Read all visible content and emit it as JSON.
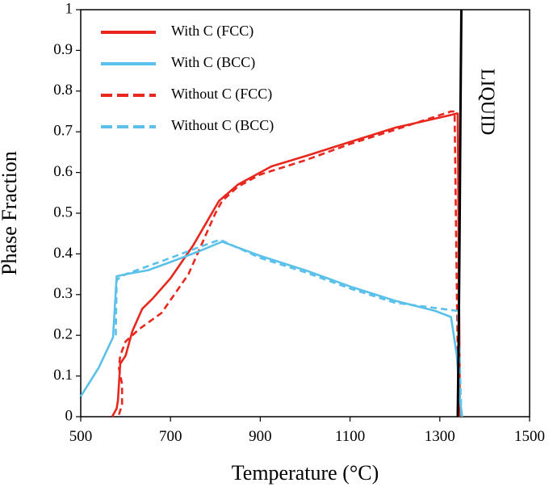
{
  "chart_data": {
    "type": "line",
    "xlabel": "Temperature (°C)",
    "ylabel": "Phase Fraction",
    "xlim": [
      500,
      1500
    ],
    "ylim": [
      0,
      1
    ],
    "xticks": [
      "500",
      "700",
      "900",
      "1100",
      "1300",
      "1500"
    ],
    "xtick_values": [
      500,
      700,
      900,
      1100,
      1300,
      1500
    ],
    "yticks": [
      "0",
      "0.1",
      "0.2",
      "0.3",
      "0.4",
      "0.5",
      "0.6",
      "0.7",
      "0.8",
      "0.9",
      "1"
    ],
    "ytick_values": [
      0,
      0.1,
      0.2,
      0.3,
      0.4,
      0.5,
      0.6,
      0.7,
      0.8,
      0.9,
      1
    ],
    "grid": false,
    "legend_position": "top-left",
    "annotation": "LIQUID",
    "series": [
      {
        "name": "With C (FCC)",
        "color": "#e8281e",
        "dash": "solid",
        "x": [
          570,
          580,
          583,
          588,
          600,
          615,
          637,
          660,
          700,
          750,
          808,
          850,
          925,
          1000,
          1100,
          1200,
          1320,
          1338,
          1340,
          1342,
          1345
        ],
        "y": [
          0,
          0.02,
          0.04,
          0.13,
          0.15,
          0.21,
          0.265,
          0.29,
          0.34,
          0.42,
          0.53,
          0.57,
          0.615,
          0.64,
          0.675,
          0.71,
          0.74,
          0.745,
          0.745,
          0.4,
          0
        ]
      },
      {
        "name": "With C (BCC)",
        "color": "#5bc1ea",
        "dash": "solid",
        "x": [
          500,
          540,
          572,
          580,
          600,
          650,
          700,
          760,
          815,
          900,
          1000,
          1100,
          1200,
          1290,
          1325,
          1338,
          1345,
          1350
        ],
        "y": [
          0.05,
          0.12,
          0.195,
          0.345,
          0.35,
          0.36,
          0.38,
          0.405,
          0.43,
          0.395,
          0.36,
          0.32,
          0.285,
          0.26,
          0.245,
          0.15,
          0.04,
          0
        ]
      },
      {
        "name": "Without C (FCC)",
        "color": "#e8281e",
        "dash": "dashed",
        "x": [
          585,
          592,
          592,
          585,
          588,
          600,
          630,
          680,
          740,
          800,
          815,
          850,
          900,
          1000,
          1100,
          1200,
          1325,
          1333,
          1338,
          1342
        ],
        "y": [
          0.005,
          0.03,
          0.08,
          0.12,
          0.15,
          0.185,
          0.215,
          0.255,
          0.35,
          0.5,
          0.53,
          0.565,
          0.595,
          0.63,
          0.67,
          0.705,
          0.75,
          0.75,
          0.3,
          0
        ]
      },
      {
        "name": "Without C (BCC)",
        "color": "#5bc1ea",
        "dash": "dashed",
        "x": [
          578,
          580,
          585,
          600,
          650,
          700,
          760,
          810,
          900,
          1000,
          1100,
          1200,
          1340,
          1344,
          1348
        ],
        "y": [
          0.2,
          0.335,
          0.34,
          0.35,
          0.37,
          0.39,
          0.415,
          0.435,
          0.39,
          0.355,
          0.315,
          0.28,
          0.26,
          0.15,
          0
        ]
      },
      {
        "name": "Liquidus",
        "color": "#000000",
        "dash": "solid",
        "x": [
          1340,
          1342,
          1344,
          1346,
          1348
        ],
        "y": [
          0,
          0.2,
          0.45,
          0.75,
          1
        ]
      }
    ]
  }
}
